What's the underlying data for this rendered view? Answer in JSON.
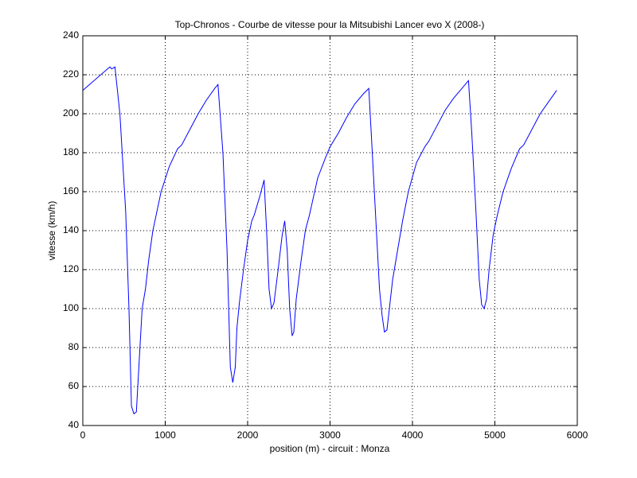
{
  "chart_data": {
    "type": "line",
    "title": "Top-Chronos - Courbe de vitesse pour la Mitsubishi Lancer evo X (2008-)",
    "x_label": "position (m) - circuit : Monza",
    "y_label": "vitesse (km/h)",
    "x": [
      0,
      300,
      330,
      350,
      390,
      450,
      520,
      560,
      590,
      620,
      650,
      680,
      720,
      760,
      800,
      850,
      880,
      950,
      1050,
      1150,
      1200,
      1300,
      1400,
      1500,
      1600,
      1640,
      1700,
      1750,
      1790,
      1820,
      1850,
      1870,
      1900,
      1950,
      2000,
      2050,
      2080,
      2150,
      2200,
      2230,
      2260,
      2290,
      2320,
      2370,
      2420,
      2450,
      2480,
      2510,
      2540,
      2560,
      2590,
      2650,
      2700,
      2750,
      2850,
      2950,
      3000,
      3100,
      3200,
      3300,
      3400,
      3470,
      3500,
      3550,
      3600,
      3630,
      3660,
      3690,
      3720,
      3760,
      3820,
      3880,
      3950,
      4050,
      4150,
      4200,
      4300,
      4400,
      4500,
      4600,
      4680,
      4720,
      4770,
      4810,
      4840,
      4870,
      4900,
      4930,
      4980,
      5030,
      5100,
      5200,
      5300,
      5350,
      5450,
      5550,
      5650,
      5750
    ],
    "values": [
      212,
      223,
      224,
      223,
      224,
      200,
      150,
      100,
      50,
      46,
      47,
      70,
      100,
      110,
      125,
      140,
      146,
      160,
      173,
      182,
      184,
      192,
      200,
      207,
      213,
      215,
      180,
      130,
      70,
      62,
      70,
      90,
      103,
      120,
      135,
      145,
      148,
      158,
      166,
      140,
      110,
      100,
      103,
      120,
      138,
      145,
      130,
      100,
      86,
      88,
      105,
      125,
      140,
      148,
      167,
      178,
      183,
      190,
      198,
      205,
      210,
      213,
      190,
      150,
      110,
      97,
      88,
      89,
      100,
      115,
      130,
      145,
      160,
      175,
      183,
      186,
      194,
      202,
      208,
      213,
      217,
      190,
      150,
      115,
      102,
      100,
      105,
      120,
      138,
      148,
      160,
      172,
      182,
      184,
      192,
      200,
      206,
      212
    ],
    "color": "#0000ff",
    "xlim": [
      0,
      6000
    ],
    "xticks": [
      0,
      1000,
      2000,
      3000,
      4000,
      5000,
      6000
    ],
    "ylim": [
      40,
      240
    ],
    "yticks": [
      40,
      60,
      80,
      100,
      120,
      140,
      160,
      180,
      200,
      220,
      240
    ],
    "grid": true
  }
}
